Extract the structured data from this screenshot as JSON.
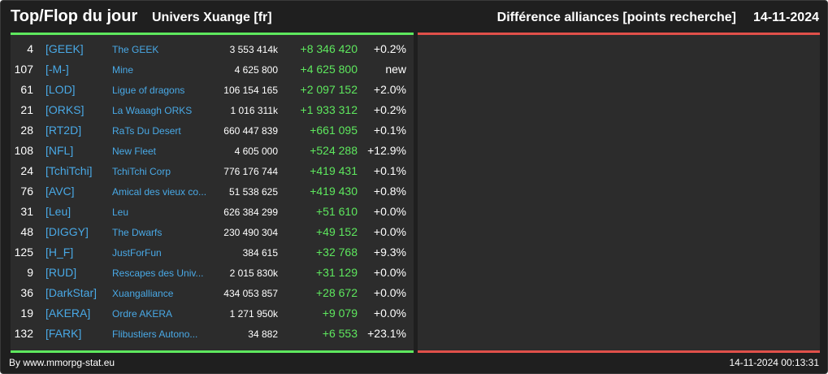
{
  "header": {
    "title": "Top/Flop du jour",
    "universe": "Univers Xuange [fr]",
    "right_title": "Différence alliances [points recherche]",
    "date": "14-11-2024"
  },
  "colors": {
    "top_line": "#5ee85e",
    "flop_line": "#e0504a",
    "tag": "#49a9e6",
    "diff_positive": "#5ee85e"
  },
  "rows": [
    {
      "rank": "4",
      "tag": "[GEEK]",
      "name": "The GEEK",
      "points": "3 553 414k",
      "diff": "+8 346 420",
      "pct": "+0.2%"
    },
    {
      "rank": "107",
      "tag": "[-M-]",
      "name": "Mine",
      "points": "4 625 800",
      "diff": "+4 625 800",
      "pct": "new"
    },
    {
      "rank": "61",
      "tag": "[LOD]",
      "name": "Ligue of dragons",
      "points": "106 154 165",
      "diff": "+2 097 152",
      "pct": "+2.0%"
    },
    {
      "rank": "21",
      "tag": "[ORKS]",
      "name": "La Waaagh ORKS",
      "points": "1 016 311k",
      "diff": "+1 933 312",
      "pct": "+0.2%"
    },
    {
      "rank": "28",
      "tag": "[RT2D]",
      "name": "RaTs Du Desert",
      "points": "660 447 839",
      "diff": "+661 095",
      "pct": "+0.1%"
    },
    {
      "rank": "108",
      "tag": "[NFL]",
      "name": "New Fleet",
      "points": "4 605 000",
      "diff": "+524 288",
      "pct": "+12.9%"
    },
    {
      "rank": "24",
      "tag": "[TchiTchi]",
      "name": "TchiTchi Corp",
      "points": "776 176 744",
      "diff": "+419 431",
      "pct": "+0.1%"
    },
    {
      "rank": "76",
      "tag": "[AVC]",
      "name": "Amical des vieux co...",
      "points": "51 538 625",
      "diff": "+419 430",
      "pct": "+0.8%"
    },
    {
      "rank": "31",
      "tag": "[Leu]",
      "name": "Leu",
      "points": "626 384 299",
      "diff": "+51 610",
      "pct": "+0.0%"
    },
    {
      "rank": "48",
      "tag": "[DIGGY]",
      "name": "The Dwarfs",
      "points": "230 490 304",
      "diff": "+49 152",
      "pct": "+0.0%"
    },
    {
      "rank": "125",
      "tag": "[H_F]",
      "name": "JustForFun",
      "points": "384 615",
      "diff": "+32 768",
      "pct": "+9.3%"
    },
    {
      "rank": "9",
      "tag": "[RUD]",
      "name": "Rescapes des Univ...",
      "points": "2 015 830k",
      "diff": "+31 129",
      "pct": "+0.0%"
    },
    {
      "rank": "36",
      "tag": "[DarkStar]",
      "name": "Xuangalliance",
      "points": "434 053 857",
      "diff": "+28 672",
      "pct": "+0.0%"
    },
    {
      "rank": "19",
      "tag": "[AKERA]",
      "name": "Ordre AKERA",
      "points": "1 271 950k",
      "diff": "+9 079",
      "pct": "+0.0%"
    },
    {
      "rank": "132",
      "tag": "[FARK]",
      "name": "Flibustiers Autono...",
      "points": "34 882",
      "diff": "+6 553",
      "pct": "+23.1%"
    }
  ],
  "footer": {
    "credit": "By www.mmorpg-stat.eu",
    "timestamp": "14-11-2024 00:13:31"
  }
}
